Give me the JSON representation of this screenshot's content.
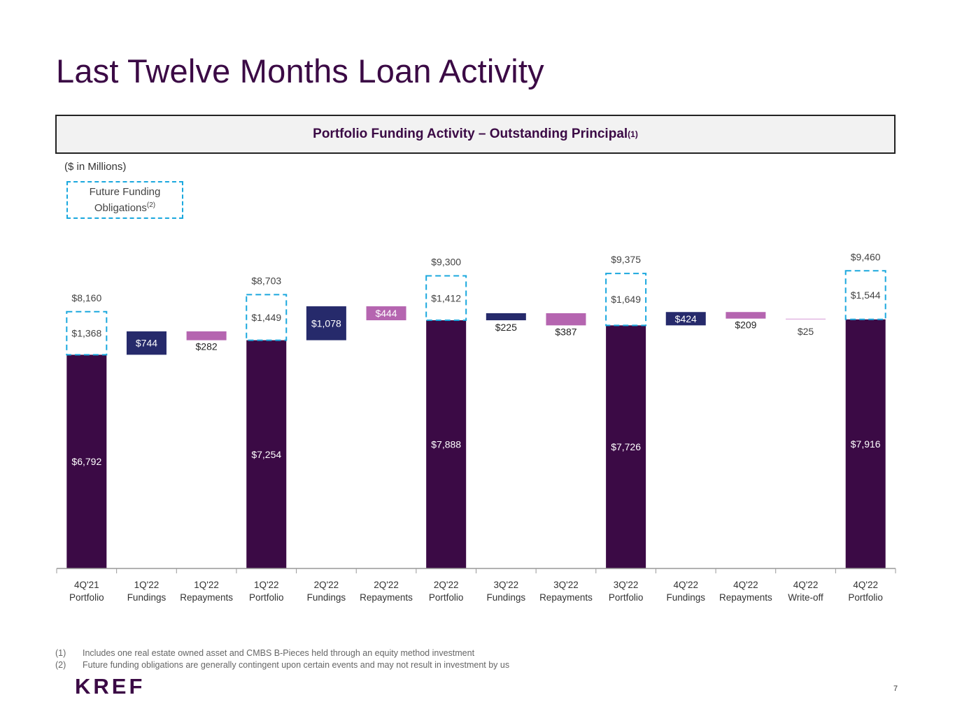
{
  "page": {
    "title": "Last Twelve Months Loan Activity",
    "banner_title": "Portfolio Funding Activity – Outstanding Principal",
    "banner_sup": "(1)",
    "units": "($ in Millions)",
    "legend_line1": "Future Funding",
    "legend_line2": "Obligations",
    "legend_sup": "(2)",
    "footnotes": [
      {
        "num": "(1)",
        "text": "Includes one real estate owned asset and CMBS B-Pieces held through an equity method investment"
      },
      {
        "num": "(2)",
        "text": "Future funding obligations are generally contingent upon certain events and may not result in investment by us"
      }
    ],
    "logo": "KREF",
    "page_number": "7"
  },
  "colors": {
    "title": "#3b0a45",
    "portfolio": "#3b0a45",
    "fundings": "#262a6b",
    "repayments": "#b565b0",
    "writeoff": "#e3b8e3",
    "future_funding_border": "#1ba8de",
    "axis": "#999999"
  },
  "chart_data": {
    "type": "bar",
    "subtype": "waterfall",
    "title": "Portfolio Funding Activity – Outstanding Principal",
    "ylabel": "$ in Millions",
    "ylim": [
      0,
      10000
    ],
    "categories": [
      {
        "line1": "4Q'21",
        "line2": "Portfolio"
      },
      {
        "line1": "1Q'22",
        "line2": "Fundings"
      },
      {
        "line1": "1Q'22",
        "line2": "Repayments"
      },
      {
        "line1": "1Q'22",
        "line2": "Portfolio"
      },
      {
        "line1": "2Q'22",
        "line2": "Fundings"
      },
      {
        "line1": "2Q'22",
        "line2": "Repayments"
      },
      {
        "line1": "2Q'22",
        "line2": "Portfolio"
      },
      {
        "line1": "3Q'22",
        "line2": "Fundings"
      },
      {
        "line1": "3Q'22",
        "line2": "Repayments"
      },
      {
        "line1": "3Q'22",
        "line2": "Portfolio"
      },
      {
        "line1": "4Q'22",
        "line2": "Fundings"
      },
      {
        "line1": "4Q'22",
        "line2": "Repayments"
      },
      {
        "line1": "4Q'22",
        "line2": "Write-off"
      },
      {
        "line1": "4Q'22",
        "line2": "Portfolio"
      }
    ],
    "bars": [
      {
        "kind": "portfolio",
        "value": 6792,
        "label": "$6,792",
        "future_funding": 1368,
        "future_label": "$1,368",
        "total": 8160,
        "total_label": "$8,160"
      },
      {
        "kind": "fundings",
        "value": 744,
        "label": "$744"
      },
      {
        "kind": "repayments",
        "value": 282,
        "label": "$282"
      },
      {
        "kind": "portfolio",
        "value": 7254,
        "label": "$7,254",
        "future_funding": 1449,
        "future_label": "$1,449",
        "total": 8703,
        "total_label": "$8,703"
      },
      {
        "kind": "fundings",
        "value": 1078,
        "label": "$1,078"
      },
      {
        "kind": "repayments",
        "value": 444,
        "label": "$444"
      },
      {
        "kind": "portfolio",
        "value": 7888,
        "label": "$7,888",
        "future_funding": 1412,
        "future_label": "$1,412",
        "total": 9300,
        "total_label": "$9,300"
      },
      {
        "kind": "fundings",
        "value": 225,
        "label": "$225"
      },
      {
        "kind": "repayments",
        "value": 387,
        "label": "$387"
      },
      {
        "kind": "portfolio",
        "value": 7726,
        "label": "$7,726",
        "future_funding": 1649,
        "future_label": "$1,649",
        "total": 9375,
        "total_label": "$9,375"
      },
      {
        "kind": "fundings",
        "value": 424,
        "label": "$424"
      },
      {
        "kind": "repayments",
        "value": 209,
        "label": "$209"
      },
      {
        "kind": "writeoff",
        "value": 25,
        "label": "$25"
      },
      {
        "kind": "portfolio",
        "value": 7916,
        "label": "$7,916",
        "future_funding": 1544,
        "future_label": "$1,544",
        "total": 9460,
        "total_label": "$9,460"
      }
    ]
  }
}
